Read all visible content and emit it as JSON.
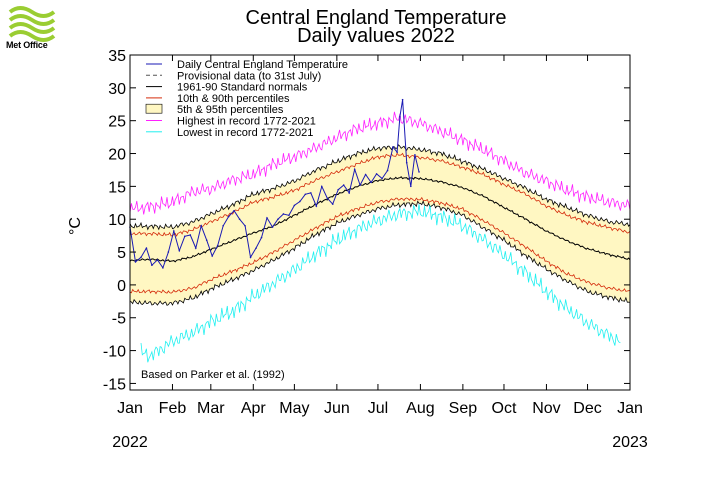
{
  "logo": {
    "name": "Met Office",
    "icon": "met-office-waves-icon",
    "color": "#9acd32"
  },
  "chart_data": {
    "type": "line",
    "title": "Central England Temperature",
    "subtitle": "Daily values 2022",
    "ylabel": "°C",
    "xlabel": "",
    "ylim": [
      -16,
      35
    ],
    "xlim": [
      0,
      365
    ],
    "yticks": [
      -15,
      -10,
      -5,
      0,
      5,
      10,
      15,
      20,
      25,
      30,
      35
    ],
    "months": [
      "Jan",
      "Feb",
      "Mar",
      "Apr",
      "May",
      "Jun",
      "Jul",
      "Aug",
      "Sep",
      "Oct",
      "Nov",
      "Dec",
      "Jan"
    ],
    "month_start_days": [
      0,
      31,
      59,
      90,
      120,
      151,
      181,
      212,
      243,
      273,
      304,
      334,
      365
    ],
    "year_start": "2022",
    "year_end": "2023",
    "annotation": "Based on Parker et al. (1992)",
    "legend": {
      "placement": "top-left",
      "entries": [
        {
          "label": "Daily Central England Temperature",
          "color": "#1a1ab4",
          "style": "line"
        },
        {
          "label": "Provisional data (to 31st July)",
          "color": "#555555",
          "style": "dashed"
        },
        {
          "label": "1961-90 Standard normals",
          "color": "#000000",
          "style": "line"
        },
        {
          "label": "10th & 90th percentiles",
          "color": "#d42a0a",
          "style": "line"
        },
        {
          "label": "5th & 95th percentiles",
          "color": "#fff7c2",
          "style": "fill"
        },
        {
          "label": "Highest in record 1772-2021",
          "color": "#ff20ff",
          "style": "line"
        },
        {
          "label": "Lowest in record 1772-2021",
          "color": "#20f0f0",
          "style": "line"
        }
      ]
    },
    "climatology": {
      "days": [
        0,
        15,
        31,
        46,
        59,
        75,
        90,
        105,
        120,
        135,
        151,
        166,
        181,
        196,
        212,
        227,
        243,
        258,
        273,
        288,
        304,
        319,
        334,
        350,
        365
      ],
      "normal": [
        3.7,
        3.9,
        3.6,
        4.3,
        5.4,
        6.7,
        7.9,
        9.0,
        10.6,
        12.2,
        13.8,
        15.0,
        15.9,
        16.3,
        16.2,
        15.7,
        14.8,
        13.5,
        11.8,
        10.1,
        8.2,
        6.7,
        5.5,
        4.6,
        3.9
      ],
      "p10": [
        -1.0,
        -1.0,
        -1.1,
        -0.5,
        0.8,
        2.1,
        3.4,
        5.0,
        6.8,
        8.6,
        10.4,
        11.6,
        12.6,
        13.1,
        13.0,
        12.5,
        11.5,
        9.8,
        7.9,
        5.9,
        3.6,
        1.7,
        0.4,
        -0.5,
        -1.0
      ],
      "p90": [
        7.8,
        7.8,
        7.6,
        8.4,
        9.6,
        11.0,
        12.6,
        13.4,
        14.4,
        15.9,
        17.2,
        18.4,
        19.5,
        19.8,
        19.4,
        18.9,
        17.9,
        16.8,
        15.3,
        13.9,
        12.0,
        10.6,
        9.5,
        8.7,
        8.0
      ],
      "p05": [
        -2.6,
        -2.8,
        -2.8,
        -2.0,
        -0.6,
        0.8,
        2.2,
        3.8,
        5.6,
        7.6,
        9.4,
        10.6,
        11.6,
        12.2,
        12.4,
        11.8,
        10.6,
        8.7,
        6.8,
        4.6,
        2.4,
        0.6,
        -1.0,
        -1.9,
        -2.6
      ],
      "p95": [
        9.0,
        8.9,
        8.8,
        9.6,
        10.8,
        12.2,
        13.8,
        14.7,
        15.8,
        17.4,
        18.8,
        20.0,
        20.8,
        21.0,
        20.6,
        20.0,
        18.8,
        17.6,
        16.2,
        14.8,
        13.0,
        11.8,
        10.6,
        9.6,
        9.2
      ],
      "highest": [
        11.6,
        11.9,
        12.6,
        14.2,
        14.6,
        16.0,
        16.8,
        18.4,
        19.5,
        20.8,
        22.4,
        23.8,
        24.6,
        25.4,
        24.6,
        23.4,
        22.0,
        20.6,
        18.9,
        17.1,
        15.8,
        14.4,
        13.4,
        12.6,
        12.0
      ],
      "lowest": [
        -9.6,
        -10.8,
        -8.6,
        -7.3,
        -5.6,
        -4.0,
        -1.8,
        0.3,
        2.3,
        4.6,
        6.8,
        8.5,
        9.8,
        10.8,
        11.2,
        10.4,
        9.0,
        6.9,
        4.6,
        2.0,
        -1.0,
        -3.6,
        -5.8,
        -7.8,
        -9.4
      ]
    },
    "series": [
      {
        "name": "Daily Central England Temperature",
        "color": "#1a1ab4",
        "x": [
          0,
          4,
          8,
          12,
          16,
          20,
          24,
          28,
          32,
          36,
          40,
          44,
          48,
          52,
          56,
          60,
          64,
          68,
          72,
          76,
          80,
          84,
          88,
          92,
          96,
          100,
          104,
          108,
          112,
          116,
          120,
          124,
          128,
          132,
          136,
          140,
          144,
          148,
          152,
          156,
          160,
          164,
          168,
          172,
          176,
          180,
          184,
          188,
          192,
          195,
          197,
          199,
          202,
          205,
          208,
          211
        ],
        "values": [
          8.8,
          3.5,
          4.2,
          5.6,
          3.0,
          3.8,
          2.6,
          5.0,
          8.2,
          5.2,
          7.4,
          7.6,
          5.6,
          9.0,
          6.8,
          4.4,
          6.0,
          9.0,
          10.4,
          11.3,
          10.0,
          9.0,
          4.2,
          5.6,
          7.2,
          10.2,
          8.8,
          10.0,
          10.8,
          10.6,
          12.1,
          12.7,
          13.8,
          14.0,
          12.0,
          15.0,
          13.2,
          12.3,
          14.5,
          15.2,
          14.0,
          17.6,
          15.2,
          16.8,
          15.6,
          16.9,
          16.2,
          17.4,
          21.0,
          20.2,
          25.6,
          28.2,
          18.6,
          15.0,
          19.8,
          17.2
        ]
      }
    ]
  }
}
